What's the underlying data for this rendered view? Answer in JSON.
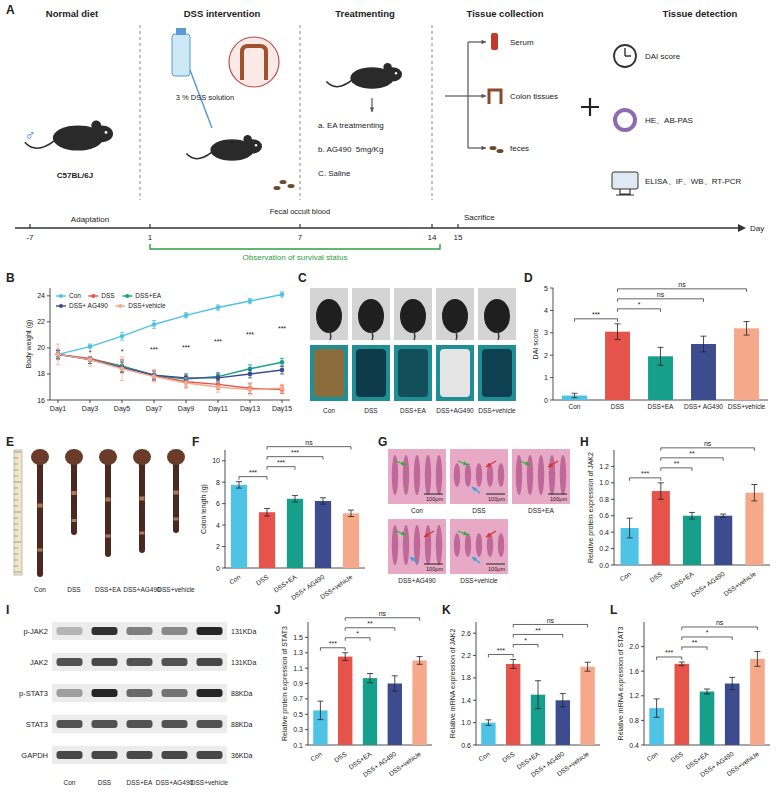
{
  "schematic": {
    "panel": "A",
    "stages": [
      "Normal diet",
      "DSS intervention",
      "Treatmenting",
      "Tissue collection",
      "Tissue detection"
    ],
    "sex": "♂",
    "strain": "C57BL/6J",
    "dss": "3 % DSS solution",
    "treatments": [
      "a. EA treatmenting",
      "b. AG490  5mg/Kg",
      "C. Saline"
    ],
    "samples": [
      "Serum",
      "Colon tissues",
      "feces"
    ],
    "detections": [
      "DAI score",
      "HE、AB-PAS",
      "ELISA、IF、WB、RT-PCR"
    ],
    "timeline": {
      "label": "Day",
      "ticks": [
        -7,
        1,
        7,
        14,
        15
      ]
    },
    "adaptation": "Adaptation",
    "fecal_test": "Fecal occult blood",
    "endpoint": "Sacrifice",
    "observation": "Observation of survival status"
  },
  "chart_data": [
    {
      "panel": "B",
      "type": "line",
      "y_label": "Body weight (g)",
      "categories": [
        "Day1",
        "Day3",
        "Day5",
        "Day7",
        "Day9",
        "Day11",
        "Day13",
        "Day15"
      ],
      "series": [
        {
          "name": "Con",
          "color": "#4fc3e6",
          "marker": "circle",
          "values": [
            19.5,
            20.1,
            20.9,
            21.8,
            22.5,
            23.1,
            23.6,
            24.1
          ],
          "errors": [
            0.2,
            0.2,
            0.3,
            0.3,
            0.2,
            0.2,
            0.2,
            0.2
          ]
        },
        {
          "name": "DSS",
          "color": "#e5534b",
          "marker": "circle",
          "values": [
            19.5,
            19.2,
            18.6,
            17.9,
            17.4,
            17.2,
            16.9,
            16.8
          ],
          "errors": [
            0.4,
            0.4,
            0.5,
            0.4,
            0.4,
            0.4,
            0.4,
            0.3
          ]
        },
        {
          "name": "DSS+EA",
          "color": "#16a08c",
          "marker": "circle",
          "values": [
            19.5,
            19.1,
            18.6,
            17.9,
            17.6,
            17.8,
            18.4,
            18.9
          ],
          "errors": [
            0.3,
            0.3,
            0.4,
            0.3,
            0.3,
            0.3,
            0.3,
            0.3
          ]
        },
        {
          "name": "DSS+ AG490",
          "color": "#3d4b8f",
          "marker": "circle",
          "values": [
            19.5,
            19.1,
            18.5,
            17.9,
            17.7,
            17.7,
            18.0,
            18.3
          ],
          "errors": [
            0.3,
            0.3,
            0.4,
            0.3,
            0.3,
            0.3,
            0.3,
            0.3
          ]
        },
        {
          "name": "DSS+vehicle",
          "color": "#f6a98a",
          "marker": "circle",
          "values": [
            19.5,
            19.1,
            18.4,
            17.8,
            17.3,
            17.0,
            16.8,
            16.9
          ],
          "errors": [
            0.8,
            0.5,
            0.9,
            0.4,
            0.4,
            0.4,
            0.4,
            0.3
          ]
        }
      ],
      "ylim": [
        16,
        24.6
      ],
      "yticks": [
        16,
        18,
        20,
        22,
        24
      ],
      "legend": "upper left",
      "annotations": [
        {
          "x": "Day3",
          "y": 19.65,
          "text": "*"
        },
        {
          "x": "Day5",
          "y": 19.75,
          "text": "*"
        },
        {
          "x": "Day7",
          "y": 19.85,
          "text": "***"
        },
        {
          "x": "Day9",
          "y": 20.0,
          "text": "***"
        },
        {
          "x": "Day11",
          "y": 20.5,
          "text": "***"
        },
        {
          "x": "Day13",
          "y": 21.0,
          "text": "***"
        },
        {
          "x": "Day15",
          "y": 21.5,
          "text": "***"
        }
      ]
    },
    {
      "panel": "D",
      "type": "bar",
      "y_label": "DAI score",
      "categories": [
        "Con",
        "DSS",
        "DSS+EA",
        "DSS+ AG490",
        "DSS+vehicle"
      ],
      "values": [
        0.2,
        3.05,
        1.95,
        2.5,
        3.2
      ],
      "errors": [
        0.1,
        0.35,
        0.4,
        0.35,
        0.3
      ],
      "colors": [
        "#4fc3e6",
        "#e5534b",
        "#16a08c",
        "#3d4b8f",
        "#f6a98a"
      ],
      "ylim": [
        0,
        5
      ],
      "yticks": [
        0,
        1,
        2,
        3,
        4,
        5
      ],
      "comparisons": [
        {
          "from": "Con",
          "to": "DSS",
          "label": "***"
        },
        {
          "from": "DSS",
          "to": "DSS+EA",
          "label": "*"
        },
        {
          "from": "DSS",
          "to": "DSS+ AG490",
          "label": "ns"
        },
        {
          "from": "DSS",
          "to": "DSS+vehicle",
          "label": "ns"
        }
      ]
    },
    {
      "panel": "F",
      "type": "bar",
      "y_label": "Colon length (g)",
      "categories": [
        "Con",
        "DSS",
        "DSS+EA",
        "DSS+ AG490",
        "DSS+vehicle"
      ],
      "values": [
        7.75,
        5.2,
        6.45,
        6.25,
        5.1
      ],
      "errors": [
        0.3,
        0.35,
        0.3,
        0.3,
        0.3
      ],
      "colors": [
        "#4fc3e6",
        "#e5534b",
        "#16a08c",
        "#3d4b8f",
        "#f6a98a"
      ],
      "ylim": [
        0,
        11
      ],
      "yticks": [
        0,
        2,
        4,
        6,
        8,
        10
      ],
      "comparisons": [
        {
          "from": "Con",
          "to": "DSS",
          "label": "***"
        },
        {
          "from": "DSS",
          "to": "DSS+EA",
          "label": "***"
        },
        {
          "from": "DSS",
          "to": "DSS+ AG490",
          "label": "***"
        },
        {
          "from": "DSS",
          "to": "DSS+vehicle",
          "label": "ns"
        }
      ]
    },
    {
      "panel": "H",
      "type": "bar",
      "y_label": "Relative protein expression of JAK2",
      "categories": [
        "Con",
        "DSS",
        "DSS+EA",
        "DSS+ AG490",
        "DSS+vehicle"
      ],
      "values": [
        0.45,
        0.9,
        0.6,
        0.6,
        0.88
      ],
      "errors": [
        0.12,
        0.1,
        0.04,
        0.02,
        0.1
      ],
      "colors": [
        "#4fc3e6",
        "#e5534b",
        "#16a08c",
        "#3d4b8f",
        "#f6a98a"
      ],
      "ylim": [
        0,
        1.4
      ],
      "yticks": [
        {
          "value": 0,
          "label": "0.0"
        },
        0.2,
        0.4,
        0.6,
        0.8,
        {
          "value": 1,
          "label": "1.0"
        },
        1.2
      ],
      "comparisons": [
        {
          "from": "Con",
          "to": "DSS",
          "label": "***"
        },
        {
          "from": "DSS",
          "to": "DSS+EA",
          "label": "**"
        },
        {
          "from": "DSS",
          "to": "DSS+ AG490",
          "label": "**"
        },
        {
          "from": "DSS",
          "to": "DSS+vehicle",
          "label": "ns"
        }
      ]
    },
    {
      "panel": "J",
      "type": "bar",
      "y_label": "Relative protein expression of STAT3",
      "categories": [
        "Con",
        "DSS",
        "DSS+EA",
        "DSS+ AG490",
        "DSS+vehicle"
      ],
      "values": [
        0.55,
        1.25,
        0.97,
        0.9,
        1.2
      ],
      "errors": [
        0.12,
        0.05,
        0.06,
        0.1,
        0.05
      ],
      "colors": [
        "#4fc3e6",
        "#e5534b",
        "#16a08c",
        "#3d4b8f",
        "#f6a98a"
      ],
      "ylim": [
        0.1,
        1.7
      ],
      "yticks": [
        0.1,
        0.3,
        0.5,
        0.7,
        0.9,
        1.1,
        1.3,
        1.5
      ],
      "comparisons": [
        {
          "from": "Con",
          "to": "DSS",
          "label": "***"
        },
        {
          "from": "DSS",
          "to": "DSS+EA",
          "label": "*"
        },
        {
          "from": "DSS",
          "to": "DSS+ AG490",
          "label": "**"
        },
        {
          "from": "DSS",
          "to": "DSS+vehicle",
          "label": "ns"
        }
      ]
    },
    {
      "panel": "K",
      "type": "bar",
      "y_label": "Relative mRNA expression of JAK2",
      "categories": [
        "Con",
        "DSS",
        "DSS+EA",
        "DSS+ AG490",
        "DSS+vehicle"
      ],
      "values": [
        1.0,
        2.05,
        1.5,
        1.4,
        2.0
      ],
      "errors": [
        0.05,
        0.08,
        0.25,
        0.12,
        0.08
      ],
      "colors": [
        "#4fc3e6",
        "#e5534b",
        "#16a08c",
        "#3d4b8f",
        "#f6a98a"
      ],
      "ylim": [
        0.6,
        2.8
      ],
      "yticks": [
        0.6,
        {
          "value": 1,
          "label": "1.0"
        },
        1.4,
        1.8,
        2.2,
        2.6
      ],
      "comparisons": [
        {
          "from": "Con",
          "to": "DSS",
          "label": "***"
        },
        {
          "from": "DSS",
          "to": "DSS+EA",
          "label": "*"
        },
        {
          "from": "DSS",
          "to": "DSS+ AG490",
          "label": "**"
        },
        {
          "from": "DSS",
          "to": "DSS+vehicle",
          "label": "ns"
        }
      ]
    },
    {
      "panel": "L",
      "type": "bar",
      "y_label": "Relative mRNA expression of STAT3",
      "categories": [
        "Con",
        "DSS",
        "DSS+EA",
        "DSS+ AG490",
        "DSS+vehicle"
      ],
      "values": [
        1.0,
        1.72,
        1.27,
        1.4,
        1.8
      ],
      "errors": [
        0.15,
        0.03,
        0.04,
        0.1,
        0.12
      ],
      "colors": [
        "#4fc3e6",
        "#e5534b",
        "#16a08c",
        "#3d4b8f",
        "#f6a98a"
      ],
      "ylim": [
        0.4,
        2.4
      ],
      "yticks": [
        0.4,
        0.8,
        1.2,
        1.6,
        {
          "value": 2,
          "label": "2.0"
        }
      ],
      "comparisons": [
        {
          "from": "Con",
          "to": "DSS",
          "label": "***"
        },
        {
          "from": "DSS",
          "to": "DSS+EA",
          "label": "**"
        },
        {
          "from": "DSS",
          "to": "DSS+ AG490",
          "label": "*"
        },
        {
          "from": "DSS",
          "to": "DSS+vehicle",
          "label": "ns"
        }
      ]
    }
  ],
  "photos_C": {
    "panel": "C",
    "labels": [
      "Con",
      "DSS",
      "DSS+EA",
      "DSS+AG490",
      "DSS+vehicle"
    ]
  },
  "photos_E": {
    "panel": "E",
    "labels": [
      "Con",
      "DSS",
      "DSS+EA",
      "DSS+AG490",
      "DSS+vehicle"
    ]
  },
  "histology_G": {
    "panel": "G",
    "labels": [
      "Con",
      "DSS",
      "DSS+EA",
      "DSS+AG490",
      "DSS+vehicle"
    ],
    "scale_bar": "100μm"
  },
  "western_blot": {
    "panel": "I",
    "lanes": [
      "Con",
      "DSS",
      "DSS+EA",
      "DSS+AG490",
      "DSS+vehicle"
    ],
    "rows": [
      {
        "name": "p-JAK2",
        "size": "131KDa",
        "band_intensity": [
          0.25,
          0.85,
          0.5,
          0.45,
          0.9
        ]
      },
      {
        "name": "JAK2",
        "size": "131KDa",
        "band_intensity": [
          0.7,
          0.75,
          0.7,
          0.7,
          0.75
        ]
      },
      {
        "name": "p-STAT3",
        "size": "88KDa",
        "band_intensity": [
          0.35,
          0.9,
          0.6,
          0.55,
          0.9
        ]
      },
      {
        "name": "STAT3",
        "size": "88KDa",
        "band_intensity": [
          0.7,
          0.7,
          0.7,
          0.7,
          0.7
        ]
      },
      {
        "name": "GAPDH",
        "size": "36KDa",
        "band_intensity": [
          0.75,
          0.75,
          0.75,
          0.75,
          0.75
        ]
      }
    ]
  }
}
